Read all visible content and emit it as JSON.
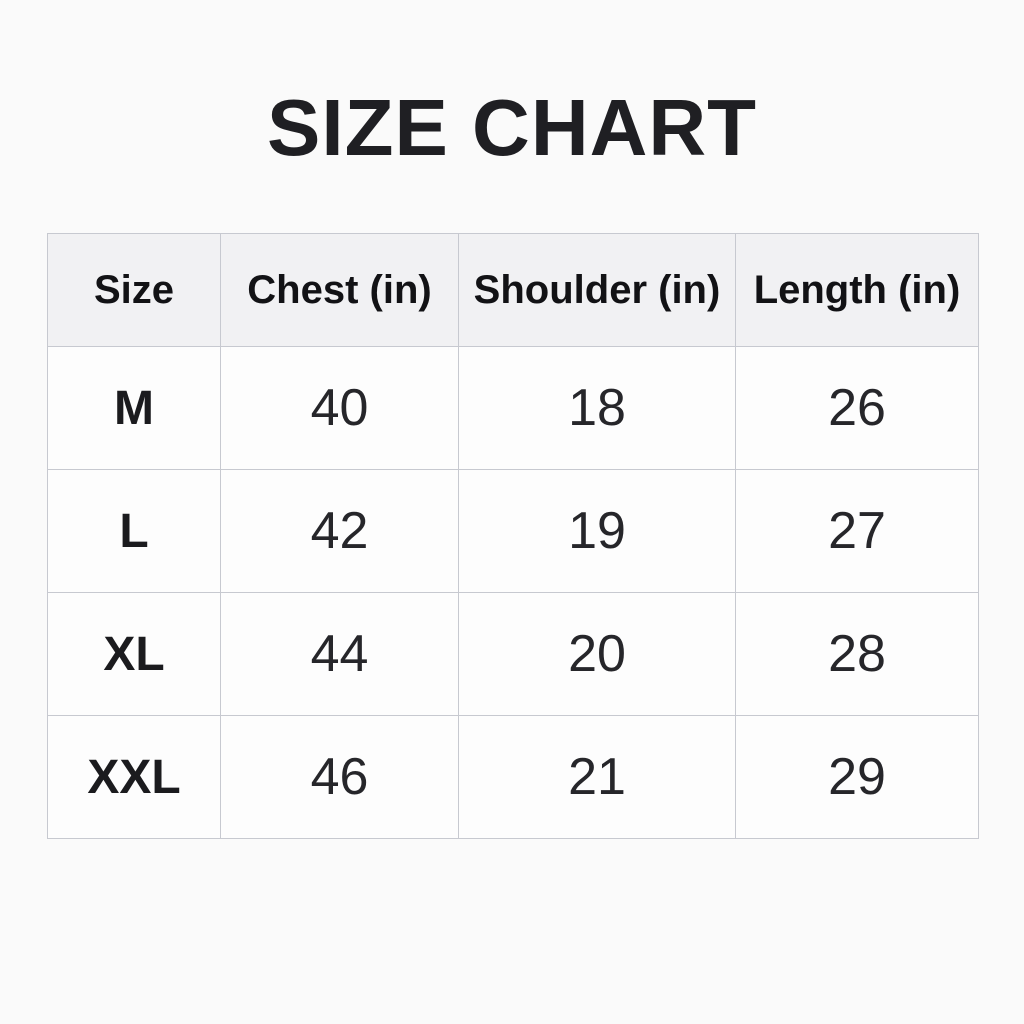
{
  "title": "SIZE CHART",
  "table": {
    "headers": [
      "Size",
      "Chest (in)",
      "Shoulder (in)",
      "Length (in)"
    ],
    "rows": [
      [
        "M",
        "40",
        "18",
        "26"
      ],
      [
        "L",
        "42",
        "19",
        "27"
      ],
      [
        "XL",
        "44",
        "20",
        "28"
      ],
      [
        "XXL",
        "46",
        "21",
        "29"
      ]
    ]
  },
  "colors": {
    "page_bg": "#fafafa",
    "header_bg": "#f1f1f3",
    "cell_bg": "#fdfdfd",
    "border": "#c7c9d0",
    "title_text": "#1f1f23",
    "body_text": "#26262a"
  },
  "chart_data": {
    "type": "table",
    "title": "SIZE CHART",
    "columns": [
      "Size",
      "Chest (in)",
      "Shoulder (in)",
      "Length (in)"
    ],
    "rows": [
      [
        "M",
        40,
        18,
        26
      ],
      [
        "L",
        42,
        19,
        27
      ],
      [
        "XL",
        44,
        20,
        28
      ],
      [
        "XXL",
        46,
        21,
        29
      ]
    ],
    "units": "inches"
  }
}
